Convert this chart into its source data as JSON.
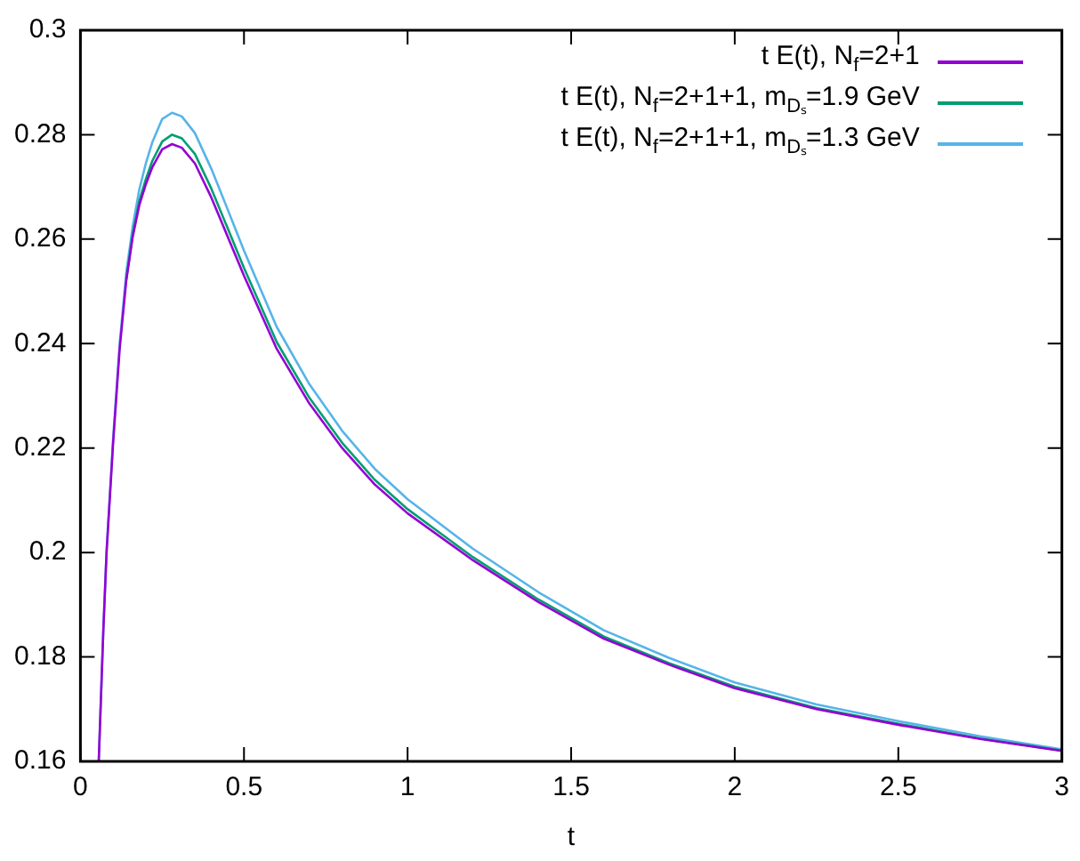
{
  "chart_data": {
    "type": "line",
    "xlabel": "t",
    "xlim": [
      0,
      3
    ],
    "xticks": [
      0,
      0.5,
      1,
      1.5,
      2,
      2.5,
      3
    ],
    "ylim": [
      0.16,
      0.3
    ],
    "yticks": [
      0.16,
      0.18,
      0.2,
      0.22,
      0.24,
      0.26,
      0.28,
      0.3
    ],
    "grid": false,
    "legend": "top right",
    "marker": "none",
    "line_style": "solid",
    "x": [
      0.056,
      0.07,
      0.08,
      0.1,
      0.12,
      0.14,
      0.16,
      0.18,
      0.2,
      0.22,
      0.25,
      0.28,
      0.31,
      0.35,
      0.4,
      0.45,
      0.5,
      0.6,
      0.7,
      0.8,
      0.9,
      1.0,
      1.2,
      1.4,
      1.6,
      1.8,
      2.0,
      2.25,
      2.5,
      2.75,
      3.0
    ],
    "series": [
      {
        "name": "t E(t), N$_{f}$=2+1",
        "color": "#9400d3",
        "values": [
          0.16,
          0.185,
          0.2,
          0.221,
          0.239,
          0.252,
          0.2605,
          0.2665,
          0.2705,
          0.2738,
          0.2772,
          0.2782,
          0.2775,
          0.2745,
          0.268,
          0.2605,
          0.253,
          0.239,
          0.2285,
          0.22,
          0.213,
          0.2075,
          0.1985,
          0.1905,
          0.1835,
          0.1785,
          0.174,
          0.17,
          0.167,
          0.1643,
          0.162
        ]
      },
      {
        "name": "t E(t), N$_{f}$=2+1+1, m$_{Dₛ}$=1.9 GeV",
        "color": "#009e73",
        "values": [
          null,
          null,
          null,
          null,
          null,
          0.2523,
          0.261,
          0.2673,
          0.2715,
          0.275,
          0.2787,
          0.28,
          0.2793,
          0.2763,
          0.2697,
          0.2621,
          0.2545,
          0.2403,
          0.2296,
          0.221,
          0.2139,
          0.2083,
          0.1991,
          0.191,
          0.1839,
          0.1788,
          0.1743,
          0.1702,
          0.1672,
          0.1644,
          0.1621
        ]
      },
      {
        "name": "t E(t), N$_{f}$=2+1+1, m$_{Dₛ}$=1.3 GeV",
        "color": "#56b4e9",
        "values": [
          0.16,
          0.185,
          0.2005,
          0.2218,
          0.24,
          0.2535,
          0.2625,
          0.2695,
          0.2745,
          0.2786,
          0.283,
          0.2842,
          0.2835,
          0.2803,
          0.2735,
          0.2657,
          0.2578,
          0.2432,
          0.2322,
          0.2233,
          0.216,
          0.2102,
          0.2007,
          0.1924,
          0.1851,
          0.1798,
          0.1751,
          0.1709,
          0.1677,
          0.1648,
          0.1623
        ]
      }
    ]
  }
}
